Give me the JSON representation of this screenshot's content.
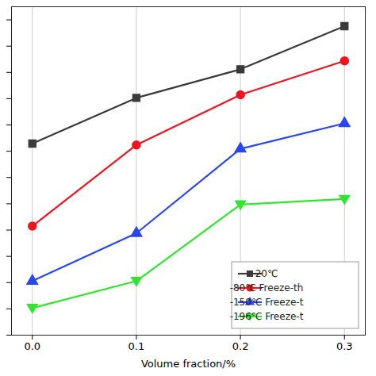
{
  "chart_data": {
    "type": "line",
    "x_label": "Volume fraction/%",
    "x": [
      0.0,
      0.1,
      0.2,
      0.3
    ],
    "xlim": [
      -0.02,
      0.32
    ],
    "xticks": [
      {
        "value": 0.0,
        "label": "0.0"
      },
      {
        "value": 0.1,
        "label": "0.1"
      },
      {
        "value": 0.2,
        "label": "0.2"
      },
      {
        "value": 0.3,
        "label": "0.3"
      }
    ],
    "ylim": [
      0,
      12.5
    ],
    "yticks": [
      0,
      1,
      2,
      3,
      4,
      5,
      6,
      7,
      8,
      9,
      10,
      11,
      12
    ],
    "tick_labels": "x",
    "grid": "x",
    "legend": "lower right",
    "series": [
      {
        "name": "20℃",
        "color": "#3a3a3a",
        "marker": "square",
        "values": [
          7.29,
          9.03,
          10.12,
          11.76
        ]
      },
      {
        "name": "-80℃ Freeze-th",
        "color": "#f0141e",
        "marker": "circle",
        "values": [
          4.15,
          7.24,
          9.15,
          10.44
        ]
      },
      {
        "name": "-150℃ Freeze-t",
        "color": "#2846f0",
        "marker": "triangle",
        "values": [
          2.06,
          3.88,
          7.09,
          8.06
        ]
      },
      {
        "name": "-196℃ Freeze-t",
        "color": "#2ee62e",
        "marker": "triangle-down",
        "values": [
          1.03,
          2.06,
          4.97,
          5.18
        ]
      }
    ]
  }
}
